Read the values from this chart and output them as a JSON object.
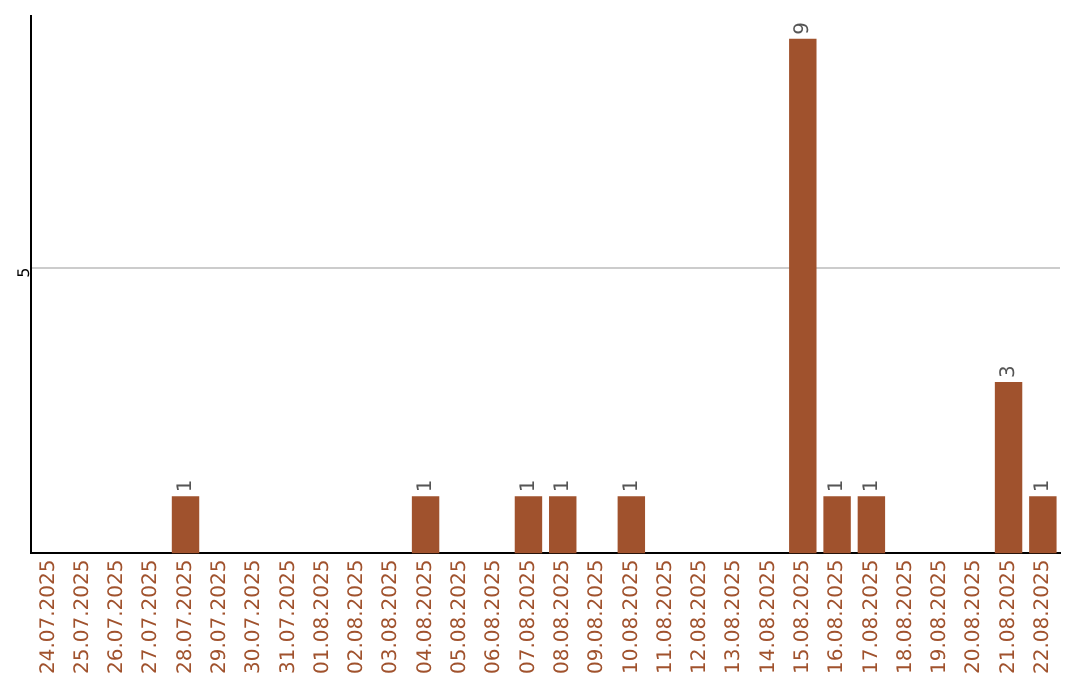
{
  "chart_data": {
    "type": "bar",
    "categories": [
      "24.07.2025",
      "25.07.2025",
      "26.07.2025",
      "27.07.2025",
      "28.07.2025",
      "29.07.2025",
      "30.07.2025",
      "31.07.2025",
      "01.08.2025",
      "02.08.2025",
      "03.08.2025",
      "04.08.2025",
      "05.08.2025",
      "06.08.2025",
      "07.08.2025",
      "08.08.2025",
      "09.08.2025",
      "10.08.2025",
      "11.08.2025",
      "12.08.2025",
      "13.08.2025",
      "14.08.2025",
      "15.08.2025",
      "16.08.2025",
      "17.08.2025",
      "18.08.2025",
      "19.08.2025",
      "20.08.2025",
      "21.08.2025",
      "22.08.2025"
    ],
    "values": [
      0,
      0,
      0,
      0,
      1,
      0,
      0,
      0,
      0,
      0,
      0,
      1,
      0,
      0,
      1,
      1,
      0,
      1,
      0,
      0,
      0,
      0,
      9,
      1,
      1,
      0,
      0,
      0,
      3,
      1
    ],
    "color": "#a0522d",
    "ylim": [
      0,
      9.4
    ],
    "yticks": [
      5
    ],
    "grid": "y",
    "value_labels": [
      null,
      null,
      null,
      null,
      "1",
      null,
      null,
      null,
      null,
      null,
      null,
      "1",
      null,
      null,
      "1",
      "1",
      null,
      "1",
      null,
      null,
      null,
      null,
      "9",
      "1",
      "1",
      null,
      null,
      null,
      "3",
      "1"
    ],
    "legend": false
  }
}
